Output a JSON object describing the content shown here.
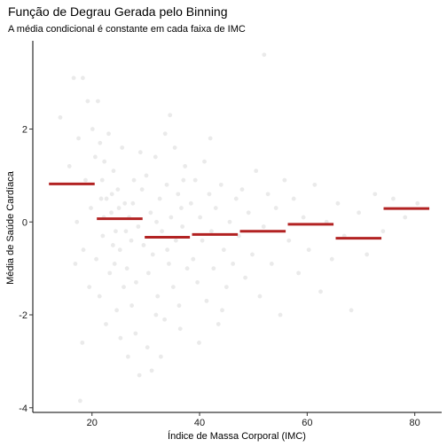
{
  "chart_data": {
    "type": "scatter",
    "title": "Função de Degrau Gerada pelo Binning",
    "subtitle": "A média condicional é constante em cada faixa de IMC",
    "xlabel": "Índice de Massa Corporal (IMC)",
    "ylabel": "Média de Saúde Cardíaca",
    "xlim": [
      9,
      85
    ],
    "ylim": [
      -4.1,
      3.9
    ],
    "x_ticks": [
      20,
      40,
      60,
      80
    ],
    "y_ticks": [
      -4,
      -2,
      0,
      2
    ],
    "grid": false,
    "colors": {
      "points": "#d9d9d9",
      "steps": "#b22222"
    },
    "steps": [
      {
        "x_start": 12,
        "x_end": 20.5,
        "y": 0.82
      },
      {
        "x_start": 20.9,
        "x_end": 29.4,
        "y": 0.07
      },
      {
        "x_start": 29.8,
        "x_end": 38.2,
        "y": -0.33
      },
      {
        "x_start": 38.6,
        "x_end": 47.1,
        "y": -0.27
      },
      {
        "x_start": 47.5,
        "x_end": 56,
        "y": -0.2
      },
      {
        "x_start": 56.4,
        "x_end": 64.9,
        "y": -0.05
      },
      {
        "x_start": 65.3,
        "x_end": 73.8,
        "y": -0.35
      },
      {
        "x_start": 74.2,
        "x_end": 82.7,
        "y": 0.29
      }
    ],
    "points": [
      {
        "x": 14.1,
        "y": 2.25
      },
      {
        "x": 16.6,
        "y": 3.1
      },
      {
        "x": 18.3,
        "y": 3.1
      },
      {
        "x": 19.2,
        "y": 2.6
      },
      {
        "x": 17.5,
        "y": 1.8
      },
      {
        "x": 15.8,
        "y": 1.2
      },
      {
        "x": 18.8,
        "y": 0.9
      },
      {
        "x": 19.8,
        "y": 0.3
      },
      {
        "x": 17.2,
        "y": 0.0
      },
      {
        "x": 18.4,
        "y": -0.6
      },
      {
        "x": 16.9,
        "y": -0.9
      },
      {
        "x": 19.5,
        "y": -1.4
      },
      {
        "x": 18.2,
        "y": -2.6
      },
      {
        "x": 17.8,
        "y": -3.85
      },
      {
        "x": 20.1,
        "y": 2.0
      },
      {
        "x": 20.6,
        "y": 1.4
      },
      {
        "x": 21.1,
        "y": 2.6
      },
      {
        "x": 21.5,
        "y": 1.7
      },
      {
        "x": 21.9,
        "y": 0.9
      },
      {
        "x": 22.3,
        "y": 1.3
      },
      {
        "x": 22.7,
        "y": 0.5
      },
      {
        "x": 23.1,
        "y": 1.9
      },
      {
        "x": 23.6,
        "y": 0.2
      },
      {
        "x": 24.0,
        "y": 1.1
      },
      {
        "x": 24.4,
        "y": -0.2
      },
      {
        "x": 24.8,
        "y": 0.7
      },
      {
        "x": 25.2,
        "y": -0.6
      },
      {
        "x": 25.6,
        "y": 1.6
      },
      {
        "x": 26.1,
        "y": 0.4
      },
      {
        "x": 26.5,
        "y": -1.0
      },
      {
        "x": 26.9,
        "y": 0.1
      },
      {
        "x": 27.3,
        "y": -0.4
      },
      {
        "x": 27.8,
        "y": 0.9
      },
      {
        "x": 28.2,
        "y": -1.3
      },
      {
        "x": 28.6,
        "y": -0.1
      },
      {
        "x": 29.0,
        "y": 1.5
      },
      {
        "x": 20.8,
        "y": -0.8
      },
      {
        "x": 21.4,
        "y": -1.6
      },
      {
        "x": 22.0,
        "y": -0.3
      },
      {
        "x": 22.6,
        "y": -2.2
      },
      {
        "x": 23.3,
        "y": -1.1
      },
      {
        "x": 23.9,
        "y": -0.5
      },
      {
        "x": 24.6,
        "y": -1.9
      },
      {
        "x": 25.3,
        "y": -2.5
      },
      {
        "x": 25.9,
        "y": -1.4
      },
      {
        "x": 26.7,
        "y": -2.9
      },
      {
        "x": 27.4,
        "y": -1.8
      },
      {
        "x": 28.1,
        "y": -2.4
      },
      {
        "x": 28.8,
        "y": -3.3
      },
      {
        "x": 22.2,
        "y": 0.1
      },
      {
        "x": 23.7,
        "y": 0.6
      },
      {
        "x": 25.0,
        "y": 0.3
      },
      {
        "x": 26.3,
        "y": -0.2
      },
      {
        "x": 27.6,
        "y": 0.4
      },
      {
        "x": 21.7,
        "y": 0.5
      },
      {
        "x": 24.2,
        "y": -0.9
      },
      {
        "x": 29.3,
        "y": 0.7
      },
      {
        "x": 29.6,
        "y": -0.5
      },
      {
        "x": 30.1,
        "y": 1.0
      },
      {
        "x": 30.5,
        "y": -1.1
      },
      {
        "x": 30.9,
        "y": 0.2
      },
      {
        "x": 31.3,
        "y": -0.7
      },
      {
        "x": 31.8,
        "y": 1.4
      },
      {
        "x": 32.2,
        "y": -1.6
      },
      {
        "x": 32.6,
        "y": 0.5
      },
      {
        "x": 33.0,
        "y": -0.2
      },
      {
        "x": 33.5,
        "y": -2.1
      },
      {
        "x": 33.9,
        "y": 0.8
      },
      {
        "x": 34.3,
        "y": -0.9
      },
      {
        "x": 34.7,
        "y": 0.1
      },
      {
        "x": 35.1,
        "y": -1.4
      },
      {
        "x": 35.6,
        "y": -0.4
      },
      {
        "x": 36.0,
        "y": 0.6
      },
      {
        "x": 36.4,
        "y": -2.3
      },
      {
        "x": 36.8,
        "y": -0.1
      },
      {
        "x": 37.3,
        "y": 1.2
      },
      {
        "x": 37.7,
        "y": -1.0
      },
      {
        "x": 30.3,
        "y": -2.7
      },
      {
        "x": 31.1,
        "y": -3.2
      },
      {
        "x": 31.9,
        "y": -2.0
      },
      {
        "x": 32.8,
        "y": -2.9
      },
      {
        "x": 33.6,
        "y": 1.9
      },
      {
        "x": 34.5,
        "y": 2.3
      },
      {
        "x": 35.4,
        "y": 1.6
      },
      {
        "x": 36.2,
        "y": -1.8
      },
      {
        "x": 37.0,
        "y": 0.9
      },
      {
        "x": 32.0,
        "y": 0.0
      },
      {
        "x": 34.0,
        "y": -0.6
      },
      {
        "x": 36.6,
        "y": 0.3
      },
      {
        "x": 38.4,
        "y": 0.4
      },
      {
        "x": 38.8,
        "y": -0.8
      },
      {
        "x": 39.2,
        "y": 0.9
      },
      {
        "x": 39.6,
        "y": -1.3
      },
      {
        "x": 40.1,
        "y": 0.1
      },
      {
        "x": 40.5,
        "y": -0.4
      },
      {
        "x": 40.9,
        "y": 1.3
      },
      {
        "x": 41.3,
        "y": -1.7
      },
      {
        "x": 41.8,
        "y": 0.6
      },
      {
        "x": 42.2,
        "y": -0.2
      },
      {
        "x": 42.6,
        "y": -1.0
      },
      {
        "x": 43.0,
        "y": 0.3
      },
      {
        "x": 43.5,
        "y": -2.2
      },
      {
        "x": 44.0,
        "y": 0.8
      },
      {
        "x": 44.5,
        "y": -0.6
      },
      {
        "x": 45.0,
        "y": -1.4
      },
      {
        "x": 45.6,
        "y": 0.0
      },
      {
        "x": 46.2,
        "y": -0.9
      },
      {
        "x": 46.8,
        "y": 0.5
      },
      {
        "x": 39.9,
        "y": -2.6
      },
      {
        "x": 42.0,
        "y": 1.8
      },
      {
        "x": 44.2,
        "y": -1.9
      },
      {
        "x": 47.3,
        "y": -0.3
      },
      {
        "x": 47.9,
        "y": 0.7
      },
      {
        "x": 48.5,
        "y": -1.2
      },
      {
        "x": 49.1,
        "y": 0.2
      },
      {
        "x": 49.8,
        "y": -0.7
      },
      {
        "x": 50.5,
        "y": 1.1
      },
      {
        "x": 51.2,
        "y": -1.6
      },
      {
        "x": 51.9,
        "y": -0.1
      },
      {
        "x": 52.7,
        "y": 0.6
      },
      {
        "x": 53.4,
        "y": -0.9
      },
      {
        "x": 54.2,
        "y": 0.3
      },
      {
        "x": 55.0,
        "y": -2.0
      },
      {
        "x": 55.8,
        "y": 0.9
      },
      {
        "x": 52.0,
        "y": 3.6
      },
      {
        "x": 56.6,
        "y": -0.4
      },
      {
        "x": 57.5,
        "y": 0.5
      },
      {
        "x": 58.4,
        "y": -1.1
      },
      {
        "x": 59.3,
        "y": 0.1
      },
      {
        "x": 60.3,
        "y": -0.6
      },
      {
        "x": 61.4,
        "y": 0.8
      },
      {
        "x": 62.5,
        "y": -1.5
      },
      {
        "x": 63.6,
        "y": 0.0
      },
      {
        "x": 64.6,
        "y": -0.8
      },
      {
        "x": 65.7,
        "y": 0.4
      },
      {
        "x": 66.9,
        "y": -0.3
      },
      {
        "x": 68.2,
        "y": -1.9
      },
      {
        "x": 69.6,
        "y": 0.2
      },
      {
        "x": 71.1,
        "y": -0.7
      },
      {
        "x": 72.6,
        "y": 0.6
      },
      {
        "x": 74.1,
        "y": -0.2
      },
      {
        "x": 76.0,
        "y": 0.5
      },
      {
        "x": 78.2,
        "y": 0.1
      },
      {
        "x": 80.5,
        "y": 0.4
      }
    ]
  }
}
